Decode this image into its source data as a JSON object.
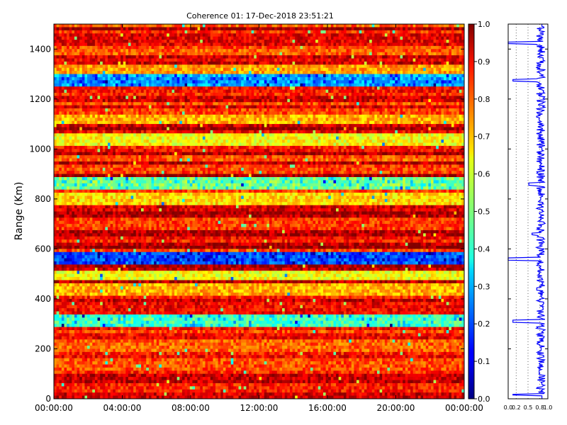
{
  "chart_data": [
    {
      "type": "heatmap",
      "title": "Coherence 01: 17-Dec-2018 23:51:21",
      "xlabel": "",
      "ylabel": "Range (Km)",
      "x_ticks": [
        "00:00:00",
        "04:00:00",
        "08:00:00",
        "12:00:00",
        "16:00:00",
        "20:00:00",
        "00:00:00"
      ],
      "y_ticks": [
        0,
        200,
        400,
        600,
        800,
        1000,
        1200,
        1400
      ],
      "ylim": [
        0,
        1500
      ],
      "xlim_hours": [
        0,
        24
      ],
      "colorscale": "jet",
      "colorbar_ticks": [
        "0.0",
        "0.1",
        "0.2",
        "0.3",
        "0.4",
        "0.5",
        "0.6",
        "0.7",
        "0.8",
        "0.9",
        "1.0"
      ],
      "colorbar_range": [
        0,
        1
      ],
      "range_band_values": [
        {
          "range_km": 15,
          "value": 0.92
        },
        {
          "range_km": 45,
          "value": 0.85
        },
        {
          "range_km": 75,
          "value": 0.93
        },
        {
          "range_km": 140,
          "value": 0.8
        },
        {
          "range_km": 215,
          "value": 0.78
        },
        {
          "range_km": 315,
          "value": 0.45
        },
        {
          "range_km": 360,
          "value": 0.88
        },
        {
          "range_km": 440,
          "value": 0.7
        },
        {
          "range_km": 495,
          "value": 0.62
        },
        {
          "range_km": 560,
          "value": 0.22
        },
        {
          "range_km": 700,
          "value": 0.82
        },
        {
          "range_km": 800,
          "value": 0.66
        },
        {
          "range_km": 860,
          "value": 0.5
        },
        {
          "range_km": 1040,
          "value": 0.62
        },
        {
          "range_km": 1120,
          "value": 0.7
        },
        {
          "range_km": 1275,
          "value": 0.3
        },
        {
          "range_km": 1320,
          "value": 0.72
        },
        {
          "range_km": 1440,
          "value": 0.9
        }
      ]
    },
    {
      "type": "line",
      "title": "",
      "xlabel": "",
      "ylabel": "",
      "x_ticks": [
        "0.0",
        "0.2",
        "0.5",
        "0.8",
        "1.0"
      ],
      "xlim": [
        0,
        1
      ],
      "ylim": [
        0,
        1500
      ],
      "line_color": "#0000ff",
      "profile": [
        {
          "range_km": 15,
          "value": 0.12
        },
        {
          "range_km": 60,
          "value": 0.85
        },
        {
          "range_km": 110,
          "value": 0.78
        },
        {
          "range_km": 200,
          "value": 0.83
        },
        {
          "range_km": 310,
          "value": 0.12
        },
        {
          "range_km": 360,
          "value": 0.88
        },
        {
          "range_km": 440,
          "value": 0.72
        },
        {
          "range_km": 560,
          "value": 0.0
        },
        {
          "range_km": 660,
          "value": 0.6
        },
        {
          "range_km": 800,
          "value": 0.82
        },
        {
          "range_km": 860,
          "value": 0.52
        },
        {
          "range_km": 1000,
          "value": 0.85
        },
        {
          "range_km": 1120,
          "value": 0.78
        },
        {
          "range_km": 1275,
          "value": 0.12
        },
        {
          "range_km": 1360,
          "value": 0.88
        },
        {
          "range_km": 1425,
          "value": 0.0
        },
        {
          "range_km": 1490,
          "value": 0.9
        }
      ]
    }
  ]
}
